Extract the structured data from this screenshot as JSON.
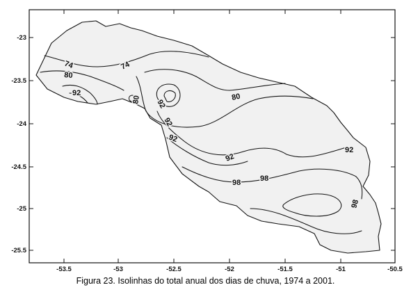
{
  "caption": "Figura 23. Isolinhas do total anual dos dias de chuva, 1974 a 2001.",
  "axes": {
    "x_ticks": [
      "-53.5",
      "-53",
      "-52.5",
      "-52",
      "-51.5",
      "-51",
      "-50.5"
    ],
    "y_ticks": [
      "-23",
      "-23.5",
      "-24",
      "-24.5",
      "-25",
      "-25.5"
    ]
  },
  "contour_labels": [
    "74",
    "74",
    "80",
    "80",
    "80",
    "92",
    "92",
    "92",
    "92",
    "92",
    "92",
    "98",
    "98",
    "98"
  ],
  "colors": {
    "ink": "#111111",
    "region_fill": "#f1f1f1"
  }
}
